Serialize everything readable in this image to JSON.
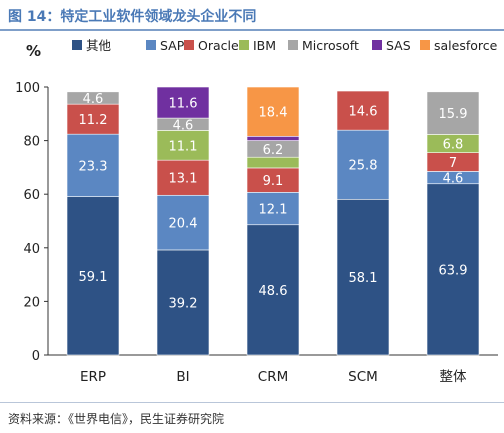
{
  "title": "图 14：特定工业软件领域龙头企业不同",
  "source": "资料来源：《世界电信》，民生证券研究院",
  "chart_data": {
    "type": "bar",
    "stacked": true,
    "categories": [
      "ERP",
      "BI",
      "CRM",
      "SCM",
      "整体"
    ],
    "ylabel": "%",
    "ylim": [
      0,
      100
    ],
    "yticks": [
      0,
      20,
      40,
      60,
      80,
      100
    ],
    "legend_position": "top",
    "series": [
      {
        "name": "其他",
        "color": "#2e5285",
        "values": [
          59.1,
          39.2,
          48.6,
          58.1,
          63.9
        ],
        "labels": [
          "59.1",
          "39.2",
          "48.6",
          "58.1",
          "63.9"
        ]
      },
      {
        "name": "SAP",
        "color": "#5b87c2",
        "values": [
          23.3,
          20.4,
          12.1,
          25.8,
          4.6
        ],
        "labels": [
          "23.3",
          "20.4",
          "12.1",
          "25.8",
          "4.6"
        ]
      },
      {
        "name": "Oracle",
        "color": "#c9504b",
        "values": [
          11.2,
          13.1,
          9.1,
          14.6,
          7
        ],
        "labels": [
          "11.2",
          "13.1",
          "9.1",
          "14.6",
          "7"
        ]
      },
      {
        "name": "IBM",
        "color": "#9bbb59",
        "values": [
          0,
          11.1,
          4.0,
          0,
          6.8
        ],
        "labels": [
          "",
          "11.1",
          "",
          "",
          "6.8"
        ]
      },
      {
        "name": "Microsoft",
        "color": "#a6a6a6",
        "values": [
          4.6,
          4.6,
          6.2,
          0,
          15.9
        ],
        "labels": [
          "4.6",
          "4.6",
          "6.2",
          "",
          "15.9"
        ]
      },
      {
        "name": "SAS",
        "color": "#7030a0",
        "values": [
          0,
          11.6,
          1.6,
          0,
          0
        ],
        "labels": [
          "",
          "11.6",
          "",
          "",
          ""
        ]
      },
      {
        "name": "salesforce",
        "color": "#f79646",
        "values": [
          0,
          0,
          18.4,
          0,
          0
        ],
        "labels": [
          "",
          "",
          "18.4",
          "",
          ""
        ]
      }
    ]
  }
}
